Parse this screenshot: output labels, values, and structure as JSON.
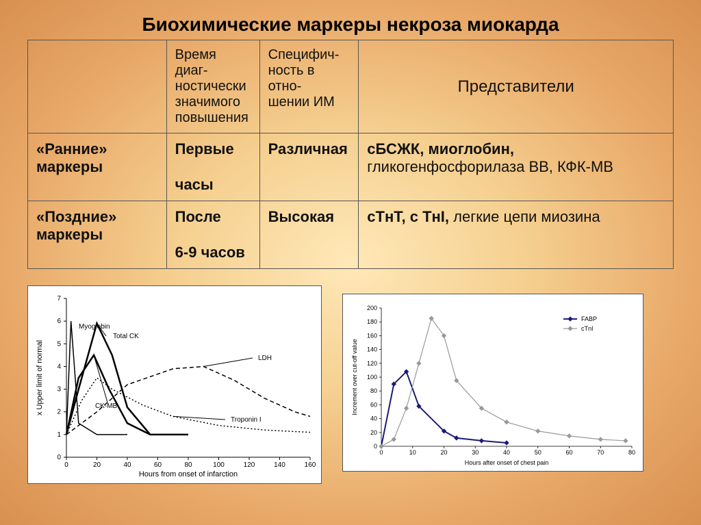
{
  "title": "Биохимические маркеры некроза миокарда",
  "table": {
    "headers": {
      "col1": "",
      "col2": "Время диаг-\nностически\nзначимого\nповышения",
      "col3": "Специфич-\nность в отно-\nшении ИМ",
      "col4": "Представители"
    },
    "rows": [
      {
        "c1_bold": "«Ранние» маркеры",
        "c2_bold": "Первые",
        "c2_rest": "часы",
        "c3_bold": "Различная",
        "c4_bold": "сБСЖК, миоглобин,",
        "c4_rest": "гликогенфосфорилаза ВВ, КФК-МВ"
      },
      {
        "c1_bold": "«Поздние» маркеры",
        "c2_bold": "После",
        "c2_rest": "6-9 часов",
        "c3_bold": "Высокая",
        "c4_bold": "сТнТ, с ТнI,",
        "c4_rest": "легкие цепи миозина"
      }
    ]
  },
  "chart1": {
    "type": "line",
    "xlabel": "Hours from onset of infarction",
    "ylabel": "x Upper limit of normal",
    "xlim": [
      0,
      160
    ],
    "xtick_step": 20,
    "ylim": [
      0,
      7
    ],
    "ytick_step": 1,
    "series": {
      "Myoglobin": {
        "style": "solid",
        "data": [
          [
            0,
            1
          ],
          [
            3,
            6
          ],
          [
            8,
            1.5
          ],
          [
            20,
            1
          ],
          [
            40,
            1
          ]
        ]
      },
      "Total CK": {
        "style": "thick",
        "data": [
          [
            0,
            1
          ],
          [
            8,
            3
          ],
          [
            20,
            5.9
          ],
          [
            30,
            4.5
          ],
          [
            40,
            2.2
          ],
          [
            55,
            1
          ],
          [
            80,
            1
          ]
        ]
      },
      "CK-MB": {
        "style": "thick",
        "data": [
          [
            0,
            1
          ],
          [
            8,
            3.5
          ],
          [
            18,
            4.5
          ],
          [
            28,
            3
          ],
          [
            40,
            1.5
          ],
          [
            55,
            1
          ]
        ]
      },
      "LDH": {
        "style": "dash",
        "data": [
          [
            0,
            1
          ],
          [
            20,
            2
          ],
          [
            40,
            3.2
          ],
          [
            70,
            3.9
          ],
          [
            90,
            4
          ],
          [
            110,
            3.4
          ],
          [
            130,
            2.6
          ],
          [
            150,
            2.0
          ],
          [
            160,
            1.8
          ]
        ]
      },
      "Troponin I": {
        "style": "dot",
        "data": [
          [
            0,
            1
          ],
          [
            10,
            2.5
          ],
          [
            20,
            3.5
          ],
          [
            30,
            3
          ],
          [
            50,
            2.3
          ],
          [
            70,
            1.8
          ],
          [
            100,
            1.4
          ],
          [
            130,
            1.2
          ],
          [
            160,
            1.1
          ]
        ]
      }
    },
    "annot": {
      "Myoglobin": [
        18,
        44
      ],
      "Total CK": [
        68,
        58
      ],
      "CK-MB": [
        42,
        160
      ],
      "LDH": [
        280,
        90
      ],
      "Troponin I": [
        240,
        180
      ]
    },
    "colors": {
      "line": "#000000",
      "bg": "#ffffff"
    }
  },
  "chart2": {
    "type": "line",
    "xlabel": "Hours after onset of chest pain",
    "ylabel": "Increment over cut-off value",
    "xlim": [
      0,
      80
    ],
    "xtick_step": 10,
    "ylim": [
      0,
      200
    ],
    "ytick_step": 20,
    "legend": [
      "FABP",
      "cTnI"
    ],
    "series": {
      "FABP": {
        "color": "#1a1a7a",
        "data": [
          [
            0,
            0
          ],
          [
            4,
            90
          ],
          [
            8,
            108
          ],
          [
            12,
            58
          ],
          [
            20,
            22
          ],
          [
            24,
            12
          ],
          [
            32,
            8
          ],
          [
            40,
            5
          ]
        ]
      },
      "cTnI": {
        "color": "#999999",
        "data": [
          [
            0,
            0
          ],
          [
            4,
            10
          ],
          [
            8,
            55
          ],
          [
            12,
            120
          ],
          [
            16,
            185
          ],
          [
            20,
            160
          ],
          [
            24,
            95
          ],
          [
            32,
            55
          ],
          [
            40,
            35
          ],
          [
            50,
            22
          ],
          [
            60,
            15
          ],
          [
            70,
            10
          ],
          [
            78,
            8
          ]
        ]
      }
    },
    "marker": "diamond",
    "colors": {
      "bg": "#ffffff"
    }
  }
}
